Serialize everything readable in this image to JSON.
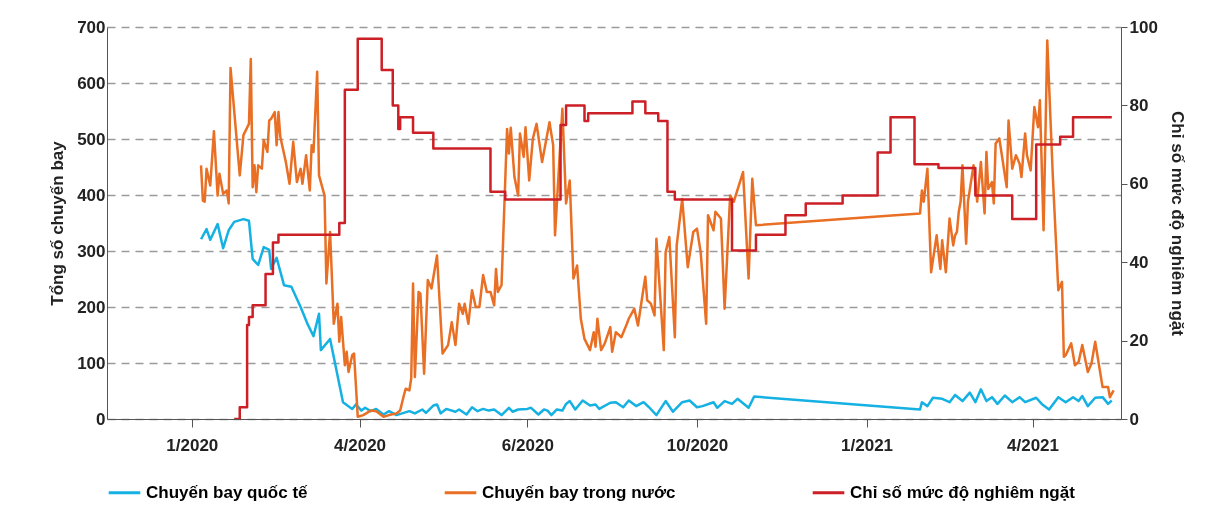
{
  "chart_data": {
    "type": "line",
    "ylabel": "Tổng số chuyến bay",
    "y2label": "Chỉ số mức độ nghiêm ngặt",
    "xlim": [
      "2019-11-16",
      "2021-05-19"
    ],
    "xticks": [
      {
        "value": "2020-01-01",
        "label": "1/2020"
      },
      {
        "value": "2020-04-01",
        "label": "4/2020"
      },
      {
        "value": "2020-07-01",
        "label": "6/2020"
      },
      {
        "value": "2020-10-01",
        "label": "10/2020"
      },
      {
        "value": "2021-01-01",
        "label": "1/2021"
      },
      {
        "value": "2021-04-01",
        "label": "4/2021"
      }
    ],
    "ylim": [
      0,
      700
    ],
    "yticks": [
      0,
      100,
      200,
      300,
      400,
      500,
      600,
      700
    ],
    "y2lim": [
      0,
      100
    ],
    "y2ticks": [
      0,
      20,
      40,
      60,
      80,
      100
    ],
    "grid": "y",
    "legend": "bottom",
    "series": [
      {
        "name": "Chuyến bay quốc tế",
        "color": "#14b1e2",
        "x": [
          "2020-01-06",
          "2020-01-09",
          "2020-01-11",
          "2020-01-15",
          "2020-01-18",
          "2020-01-21",
          "2020-01-24",
          "2020-01-29",
          "2020-02-01",
          "2020-02-03",
          "2020-02-06",
          "2020-02-09",
          "2020-02-12",
          "2020-02-13",
          "2020-02-16",
          "2020-02-20",
          "2020-02-24",
          "2020-02-29",
          "2020-03-04",
          "2020-03-07",
          "2020-03-10",
          "2020-03-11",
          "2020-03-16",
          "2020-03-23",
          "2020-03-28",
          "2020-03-30",
          "2020-04-02",
          "2020-04-04",
          "2020-04-07",
          "2020-04-10",
          "2020-04-14",
          "2020-04-17",
          "2020-04-21",
          "2020-04-28",
          "2020-05-01",
          "2020-05-05",
          "2020-05-07",
          "2020-05-11",
          "2020-05-13",
          "2020-05-15",
          "2020-05-18",
          "2020-05-23",
          "2020-05-25",
          "2020-05-29",
          "2020-06-01",
          "2020-06-04",
          "2020-06-07",
          "2020-06-10",
          "2020-06-13",
          "2020-06-17",
          "2020-06-21",
          "2020-06-23",
          "2020-06-26",
          "2020-07-01",
          "2020-07-03",
          "2020-07-07",
          "2020-07-10",
          "2020-07-12",
          "2020-07-14",
          "2020-07-17",
          "2020-07-20",
          "2020-07-22",
          "2020-07-24",
          "2020-07-27",
          "2020-07-31",
          "2020-08-04",
          "2020-08-07",
          "2020-08-09",
          "2020-08-15",
          "2020-08-18",
          "2020-08-22",
          "2020-08-25",
          "2020-08-29",
          "2020-09-02",
          "2020-09-05",
          "2020-09-09",
          "2020-09-14",
          "2020-09-18",
          "2020-09-23",
          "2020-09-27",
          "2020-10-01",
          "2020-10-04",
          "2020-10-10",
          "2020-10-12",
          "2020-10-16",
          "2020-10-20",
          "2020-10-23",
          "2020-10-29",
          "2020-11-01",
          "2021-01-30",
          "2021-01-31",
          "2021-02-03",
          "2021-02-06",
          "2021-02-11",
          "2021-02-15",
          "2021-02-18",
          "2021-02-22",
          "2021-02-26",
          "2021-03-01",
          "2021-03-04",
          "2021-03-07",
          "2021-03-10",
          "2021-03-13",
          "2021-03-17",
          "2021-03-21",
          "2021-03-25",
          "2021-03-28",
          "2021-04-03",
          "2021-04-06",
          "2021-04-10",
          "2021-04-15",
          "2021-04-19",
          "2021-04-23",
          "2021-04-26",
          "2021-04-28",
          "2021-05-01",
          "2021-05-05",
          "2021-05-09",
          "2021-05-12",
          "2021-05-14"
        ],
        "values": [
          321,
          339,
          320,
          348,
          305,
          337,
          352,
          357,
          354,
          286,
          275,
          307,
          302,
          268,
          288,
          239,
          236,
          200,
          168,
          148,
          188,
          123,
          143,
          30,
          18,
          26,
          15,
          20,
          14,
          18,
          8,
          14,
          7,
          14,
          10,
          17,
          11,
          24,
          26,
          10,
          18,
          13,
          17,
          8,
          21,
          14,
          18,
          15,
          17,
          7,
          20,
          13,
          17,
          18,
          20,
          8,
          17,
          15,
          7,
          17,
          15,
          27,
          32,
          17,
          33,
          24,
          26,
          18,
          29,
          30,
          21,
          33,
          23,
          30,
          21,
          7,
          32,
          13,
          30,
          33,
          21,
          23,
          30,
          20,
          32,
          27,
          36,
          20,
          40,
          17,
          30,
          23,
          38,
          36,
          30,
          43,
          32,
          47,
          30,
          53,
          32,
          39,
          27,
          42,
          30,
          39,
          30,
          38,
          27,
          17,
          39,
          30,
          39,
          32,
          41,
          23,
          38,
          39,
          27,
          33
        ]
      },
      {
        "name": "Chuyến bay trong nước",
        "color": "#e96f24",
        "x": [
          "2020-01-06",
          "2020-01-07",
          "2020-01-08",
          "2020-01-09",
          "2020-01-11",
          "2020-01-13",
          "2020-01-15",
          "2020-01-16",
          "2020-01-18",
          "2020-01-20",
          "2020-01-21",
          "2020-01-22",
          "2020-01-27",
          "2020-01-29",
          "2020-02-01",
          "2020-02-02",
          "2020-02-03",
          "2020-02-04",
          "2020-02-05",
          "2020-02-06",
          "2020-02-08",
          "2020-02-09",
          "2020-02-11",
          "2020-02-12",
          "2020-02-13",
          "2020-02-15",
          "2020-02-16",
          "2020-02-17",
          "2020-02-18",
          "2020-02-21",
          "2020-02-23",
          "2020-02-25",
          "2020-02-27",
          "2020-02-29",
          "2020-03-01",
          "2020-03-03",
          "2020-03-05",
          "2020-03-06",
          "2020-03-07",
          "2020-03-09",
          "2020-03-10",
          "2020-03-13",
          "2020-03-14",
          "2020-03-16",
          "2020-03-18",
          "2020-03-20",
          "2020-03-21",
          "2020-03-22",
          "2020-03-24",
          "2020-03-25",
          "2020-03-26",
          "2020-03-28",
          "2020-03-29",
          "2020-03-31",
          "2020-04-03",
          "2020-04-07",
          "2020-04-10",
          "2020-04-14",
          "2020-04-17",
          "2020-04-21",
          "2020-04-23",
          "2020-04-25",
          "2020-04-26",
          "2020-04-28",
          "2020-04-29",
          "2020-04-30",
          "2020-05-01",
          "2020-05-03",
          "2020-05-04",
          "2020-05-06",
          "2020-05-08",
          "2020-05-10",
          "2020-05-13",
          "2020-05-16",
          "2020-05-19",
          "2020-05-21",
          "2020-05-23",
          "2020-05-25",
          "2020-05-27",
          "2020-05-28",
          "2020-05-30",
          "2020-06-01",
          "2020-06-03",
          "2020-06-05",
          "2020-06-07",
          "2020-06-09",
          "2020-06-11",
          "2020-06-13",
          "2020-06-14",
          "2020-06-15",
          "2020-06-17",
          "2020-06-20",
          "2020-06-21",
          "2020-06-22",
          "2020-06-24",
          "2020-06-26",
          "2020-06-27",
          "2020-06-29",
          "2020-06-30",
          "2020-07-02",
          "2020-07-04",
          "2020-07-06",
          "2020-07-09",
          "2020-07-13",
          "2020-07-15",
          "2020-07-16",
          "2020-07-20",
          "2020-07-22",
          "2020-07-24",
          "2020-07-26",
          "2020-07-28",
          "2020-07-30",
          "2020-08-01",
          "2020-08-04",
          "2020-08-06",
          "2020-08-07",
          "2020-08-08",
          "2020-08-10",
          "2020-08-12",
          "2020-08-15",
          "2020-08-16",
          "2020-08-18",
          "2020-08-21",
          "2020-08-24",
          "2020-08-25",
          "2020-08-28",
          "2020-08-30",
          "2020-09-02",
          "2020-09-03",
          "2020-09-04",
          "2020-09-06",
          "2020-09-08",
          "2020-09-09",
          "2020-09-13",
          "2020-09-14",
          "2020-09-16",
          "2020-09-19",
          "2020-09-20",
          "2020-09-23",
          "2020-09-26",
          "2020-09-29",
          "2020-10-01",
          "2020-10-03",
          "2020-10-06",
          "2020-10-07",
          "2020-10-10",
          "2020-10-11",
          "2020-10-14",
          "2020-10-16",
          "2020-10-19",
          "2020-10-21",
          "2020-10-22",
          "2020-10-26",
          "2020-10-29",
          "2020-10-31",
          "2020-11-02",
          "2021-01-30",
          "2021-01-31",
          "2021-02-01",
          "2021-02-03",
          "2021-02-05",
          "2021-02-08",
          "2021-02-10",
          "2021-02-11",
          "2021-02-13",
          "2021-02-15",
          "2021-02-17",
          "2021-02-18",
          "2021-02-19",
          "2021-02-20",
          "2021-02-21",
          "2021-02-22",
          "2021-02-24",
          "2021-02-25",
          "2021-02-28",
          "2021-03-02",
          "2021-03-04",
          "2021-03-06",
          "2021-03-07",
          "2021-03-08",
          "2021-03-10",
          "2021-03-11",
          "2021-03-12",
          "2021-03-14",
          "2021-03-18",
          "2021-03-19",
          "2021-03-21",
          "2021-03-23",
          "2021-03-25",
          "2021-03-26",
          "2021-03-28",
          "2021-03-29",
          "2021-03-31",
          "2021-04-02",
          "2021-04-04",
          "2021-04-05",
          "2021-04-07",
          "2021-04-09",
          "2021-04-12",
          "2021-04-15",
          "2021-04-17",
          "2021-04-18",
          "2021-04-19",
          "2021-04-22",
          "2021-04-24",
          "2021-04-26",
          "2021-04-28",
          "2021-05-01",
          "2021-05-03",
          "2021-05-05",
          "2021-05-09",
          "2021-05-12",
          "2021-05-13",
          "2021-05-15"
        ],
        "values": [
          453,
          390,
          388,
          447,
          417,
          514,
          399,
          438,
          402,
          408,
          385,
          627,
          435,
          507,
          527,
          643,
          414,
          453,
          405,
          453,
          447,
          498,
          477,
          533,
          536,
          548,
          489,
          548,
          504,
          459,
          420,
          495,
          423,
          447,
          420,
          471,
          408,
          489,
          477,
          620,
          435,
          399,
          242,
          334,
          170,
          206,
          138,
          182,
          96,
          120,
          84,
          114,
          117,
          4,
          7,
          15,
          14,
          4,
          7,
          10,
          15,
          42,
          54,
          51,
          72,
          242,
          75,
          227,
          224,
          81,
          248,
          233,
          292,
          117,
          132,
          173,
          132,
          206,
          188,
          206,
          170,
          230,
          200,
          200,
          257,
          227,
          227,
          203,
          268,
          227,
          239,
          518,
          474,
          520,
          432,
          399,
          510,
          468,
          521,
          426,
          501,
          527,
          459,
          530,
          489,
          328,
          554,
          385,
          426,
          251,
          274,
          179,
          143,
          123,
          155,
          129,
          179,
          123,
          135,
          164,
          120,
          155,
          146,
          170,
          179,
          197,
          167,
          233,
          254,
          212,
          206,
          185,
          322,
          123,
          298,
          325,
          146,
          310,
          393,
          271,
          334,
          340,
          298,
          170,
          364,
          337,
          370,
          358,
          197,
          399,
          388,
          399,
          441,
          251,
          429,
          346,
          367,
          408,
          388,
          447,
          262,
          328,
          268,
          319,
          262,
          358,
          310,
          328,
          334,
          370,
          388,
          453,
          313,
          388,
          453,
          388,
          459,
          367,
          477,
          411,
          423,
          385,
          492,
          501,
          414,
          533,
          447,
          471,
          456,
          432,
          510,
          471,
          444,
          557,
          521,
          569,
          337,
          676,
          435,
          230,
          245,
          111,
          114,
          135,
          96,
          102,
          132,
          84,
          99,
          138,
          57,
          57,
          39,
          51
        ]
      },
      {
        "name": "Chỉ số mức độ nghiêm ngặt",
        "color": "#cc1f26",
        "type": "step",
        "axis": "y2",
        "x": [
          "2020-01-24",
          "2020-01-27",
          "2020-01-31",
          "2020-02-01",
          "2020-02-03",
          "2020-02-10",
          "2020-02-14",
          "2020-02-17",
          "2020-03-21",
          "2020-03-24",
          "2020-03-31",
          "2020-04-13",
          "2020-04-19",
          "2020-04-22",
          "2020-04-23",
          "2020-04-30",
          "2020-05-11",
          "2020-06-11",
          "2020-06-19",
          "2020-07-19",
          "2020-07-22",
          "2020-08-01",
          "2020-08-03",
          "2020-08-27",
          "2020-09-03",
          "2020-09-10",
          "2020-09-15",
          "2020-09-19",
          "2020-10-20",
          "2020-11-02",
          "2020-11-18",
          "2020-11-29",
          "2020-12-19",
          "2021-01-07",
          "2021-01-14",
          "2021-01-27",
          "2021-02-09",
          "2021-03-01",
          "2021-03-21",
          "2021-04-03",
          "2021-04-16",
          "2021-04-23",
          "2021-05-14"
        ],
        "values": [
          0,
          3,
          24,
          26,
          29,
          37,
          45,
          47,
          50,
          84,
          97,
          89,
          80,
          74,
          77,
          73,
          69,
          58,
          56,
          75,
          80,
          76,
          78,
          81,
          78,
          76,
          58,
          56,
          43,
          47,
          52,
          55,
          57,
          68,
          77,
          65,
          64,
          57,
          51,
          70,
          72,
          77,
          77
        ]
      }
    ]
  }
}
